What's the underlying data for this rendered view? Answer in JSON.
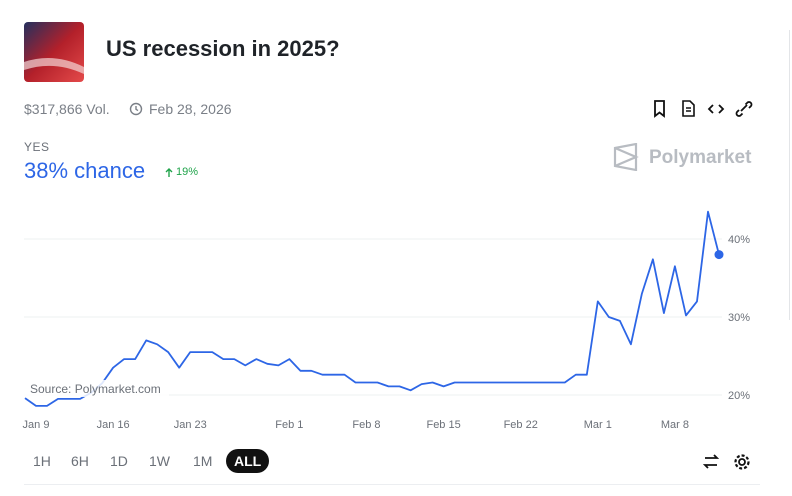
{
  "header": {
    "title": "US recession in 2025?",
    "volume": "$317,866 Vol.",
    "end_date": "Feb 28, 2026"
  },
  "market": {
    "outcome": "YES",
    "chance": "38% chance",
    "change": "19%",
    "brand": "Polymarket"
  },
  "chart_data": {
    "type": "line",
    "x": [
      "Jan 8",
      "Jan 9",
      "Jan 10",
      "Jan 11",
      "Jan 12",
      "Jan 13",
      "Jan 14",
      "Jan 15",
      "Jan 16",
      "Jan 17",
      "Jan 18",
      "Jan 19",
      "Jan 20",
      "Jan 21",
      "Jan 22",
      "Jan 23",
      "Jan 24",
      "Jan 25",
      "Jan 26",
      "Jan 27",
      "Jan 28",
      "Jan 29",
      "Jan 30",
      "Jan 31",
      "Feb 1",
      "Feb 2",
      "Feb 3",
      "Feb 4",
      "Feb 5",
      "Feb 6",
      "Feb 7",
      "Feb 8",
      "Feb 9",
      "Feb 10",
      "Feb 11",
      "Feb 12",
      "Feb 13",
      "Feb 14",
      "Feb 15",
      "Feb 16",
      "Feb 17",
      "Feb 18",
      "Feb 19",
      "Feb 20",
      "Feb 21",
      "Feb 22",
      "Feb 23",
      "Feb 24",
      "Feb 25",
      "Feb 26",
      "Feb 27",
      "Feb 28",
      "Mar 1",
      "Mar 2",
      "Mar 3",
      "Mar 4",
      "Mar 5",
      "Mar 6",
      "Mar 7",
      "Mar 8",
      "Mar 9",
      "Mar 10",
      "Mar 11",
      "Mar 12"
    ],
    "series": [
      {
        "name": "YES",
        "color": "#2d66e6",
        "values": [
          19.6,
          18.6,
          18.6,
          19.5,
          19.5,
          19.5,
          20.3,
          21.5,
          23.5,
          24.6,
          24.6,
          27,
          26.5,
          25.5,
          23.5,
          25.5,
          25.5,
          25.5,
          24.6,
          24.6,
          23.8,
          24.6,
          24,
          23.8,
          24.6,
          23.1,
          23.1,
          22.6,
          22.6,
          22.6,
          21.6,
          21.6,
          21.6,
          21.1,
          21.1,
          20.6,
          21.4,
          21.6,
          21.1,
          21.6,
          21.6,
          21.6,
          21.6,
          21.6,
          21.6,
          21.6,
          21.6,
          21.6,
          21.6,
          21.6,
          22.6,
          22.6,
          32,
          30,
          29.5,
          26.5,
          33,
          37.4,
          30.5,
          36.5,
          30.2,
          32,
          43.5,
          38
        ]
      }
    ],
    "xticks": [
      "Jan 9",
      "Jan 16",
      "Jan 23",
      "Feb 1",
      "Feb 8",
      "Feb 15",
      "Feb 22",
      "Mar 1",
      "Mar 8"
    ],
    "ylim": [
      18,
      45
    ],
    "yticks": [
      {
        "value": 20,
        "label": "20%"
      },
      {
        "value": 30,
        "label": "30%"
      },
      {
        "value": 40,
        "label": "40%"
      }
    ],
    "grid": true,
    "source": "Source: Polymarket.com"
  },
  "ranges": [
    "1H",
    "6H",
    "1D",
    "1W",
    "1M",
    "ALL"
  ]
}
